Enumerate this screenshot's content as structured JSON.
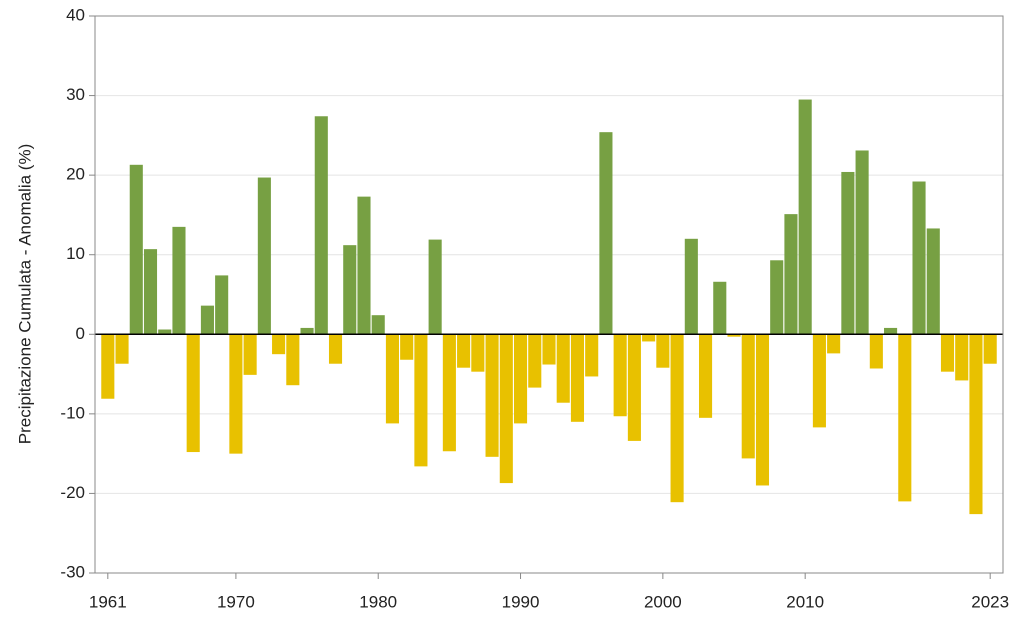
{
  "chart_data": {
    "type": "bar",
    "y_label": "Precipitazione Cumulata - Anomalia (%)",
    "x": [
      1961,
      1962,
      1963,
      1964,
      1965,
      1966,
      1967,
      1968,
      1969,
      1970,
      1971,
      1972,
      1973,
      1974,
      1975,
      1976,
      1977,
      1978,
      1979,
      1980,
      1981,
      1982,
      1983,
      1984,
      1985,
      1986,
      1987,
      1988,
      1989,
      1990,
      1991,
      1992,
      1993,
      1994,
      1995,
      1996,
      1997,
      1998,
      1999,
      2000,
      2001,
      2002,
      2003,
      2004,
      2005,
      2006,
      2007,
      2008,
      2009,
      2010,
      2011,
      2012,
      2013,
      2014,
      2015,
      2016,
      2017,
      2018,
      2019,
      2020,
      2021,
      2022,
      2023
    ],
    "values": [
      -8.1,
      -3.7,
      21.3,
      10.7,
      0.6,
      13.5,
      -14.8,
      3.6,
      7.4,
      -15.0,
      -5.1,
      19.7,
      -2.5,
      -6.4,
      0.8,
      27.4,
      -3.7,
      11.2,
      17.3,
      2.4,
      -11.2,
      -3.2,
      -16.6,
      11.9,
      -14.7,
      -4.2,
      -4.7,
      -15.4,
      -18.7,
      -11.2,
      -6.7,
      -3.8,
      -8.6,
      -11.0,
      -5.3,
      25.4,
      -10.3,
      -13.4,
      -0.9,
      -4.2,
      -21.1,
      12.0,
      -10.5,
      6.6,
      -0.3,
      -15.6,
      -19.0,
      9.3,
      15.1,
      29.5,
      -11.7,
      -2.4,
      20.4,
      23.1,
      -4.3,
      0.8,
      -21.0,
      19.2,
      13.3,
      -4.7,
      -5.8,
      -22.6,
      -3.7
    ],
    "positive_color": "#77a043",
    "negative_color": "#e8c100",
    "xlim": [
      1960.1,
      2023.9
    ],
    "xticks": [
      1961,
      1970,
      1980,
      1990,
      2000,
      2010,
      2023
    ],
    "ylim": [
      -30,
      40
    ],
    "yticks": [
      -30,
      -20,
      -10,
      0,
      10,
      20,
      30,
      40
    ],
    "grid": true
  }
}
